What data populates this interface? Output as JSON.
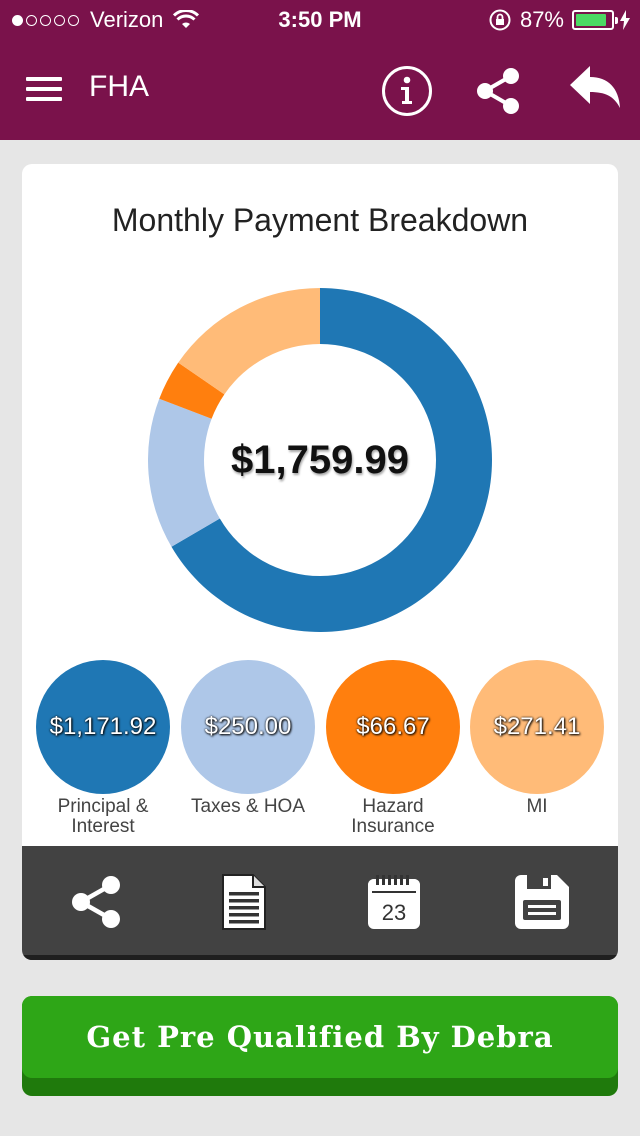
{
  "status_bar": {
    "carrier": "Verizon",
    "time": "3:50 PM",
    "battery": "87%",
    "battery_level": 0.87,
    "signal_bars": 1
  },
  "nav": {
    "title": "FHA",
    "icons": [
      "menu-icon",
      "info-icon",
      "share-icon",
      "reply-back-icon"
    ]
  },
  "card": {
    "title": "Monthly Payment Breakdown",
    "total": "$1,759.99"
  },
  "chart_data": {
    "type": "pie",
    "title": "Monthly Payment Breakdown",
    "center_label": "$1,759.99",
    "categories": [
      "Principal & Interest",
      "Taxes & HOA",
      "Hazard Insurance",
      "MI"
    ],
    "values": [
      1171.92,
      250.0,
      66.67,
      271.41
    ],
    "colors": [
      "#1f77b4",
      "#aec7e8",
      "#ff7f0e",
      "#ffbb78"
    ]
  },
  "legend": [
    {
      "amount": "$1,171.92",
      "label": "Principal & Interest",
      "color": "#1f77b4"
    },
    {
      "amount": "$250.00",
      "label": "Taxes & HOA",
      "color": "#aec7e8"
    },
    {
      "amount": "$66.67",
      "label": "Hazard Insurance",
      "color": "#ff7f0e"
    },
    {
      "amount": "$271.41",
      "label": "MI",
      "color": "#ffbb78"
    }
  ],
  "toolbar": {
    "icons": [
      "share-icon",
      "document-icon",
      "calendar-icon",
      "save-icon"
    ],
    "calendar_day": "23"
  },
  "cta": {
    "label": "Get Pre Qualified By Debra",
    "color": "#2ea617"
  },
  "colors": {
    "header": "#7a124b",
    "toolbar": "#424242"
  }
}
